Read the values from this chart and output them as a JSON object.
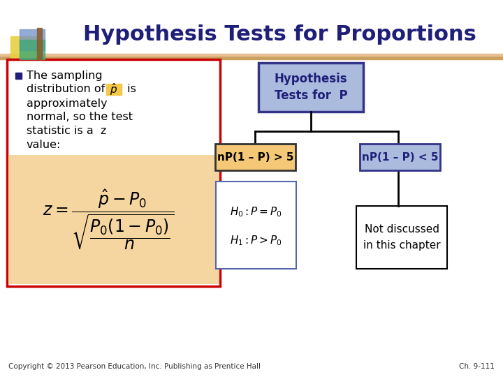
{
  "title": "Hypothesis Tests for Proportions",
  "title_color": "#1F1F7A",
  "title_fontsize": 22,
  "bg_color": "#FFFFFF",
  "header_bar_color": "#C8A060",
  "bullet_box_border": "#CC0000",
  "formula_box_color": "#F5D5A0",
  "hyp_box_color": "#AABBDD",
  "hyp_box_border": "#333388",
  "hyp_box_text": "Hypothesis\nTests for  P",
  "cond1_box_color": "#F5C878",
  "cond1_box_border": "#333333",
  "cond1_text": "nP(1 – P) > 5",
  "cond2_box_color": "#AABBDD",
  "cond2_box_border": "#333388",
  "cond2_text": "nP(1 – P) < 5",
  "hyp_formula_box_border": "#333388",
  "not_discussed_text": "Not discussed\nin this chapter",
  "not_discussed_box_border": "#000000",
  "footer_left": "Copyright © 2013 Pearson Education, Inc. Publishing as Prentice Hall",
  "footer_right": "Ch. 9-111",
  "footer_color": "#333333",
  "footer_fontsize": 7.5,
  "dark_navy": "#1F1F7A",
  "text_color": "#000000",
  "line_color": "#000000",
  "phat_highlight": "#F5C848",
  "bullet_color": "#1F1F7A"
}
